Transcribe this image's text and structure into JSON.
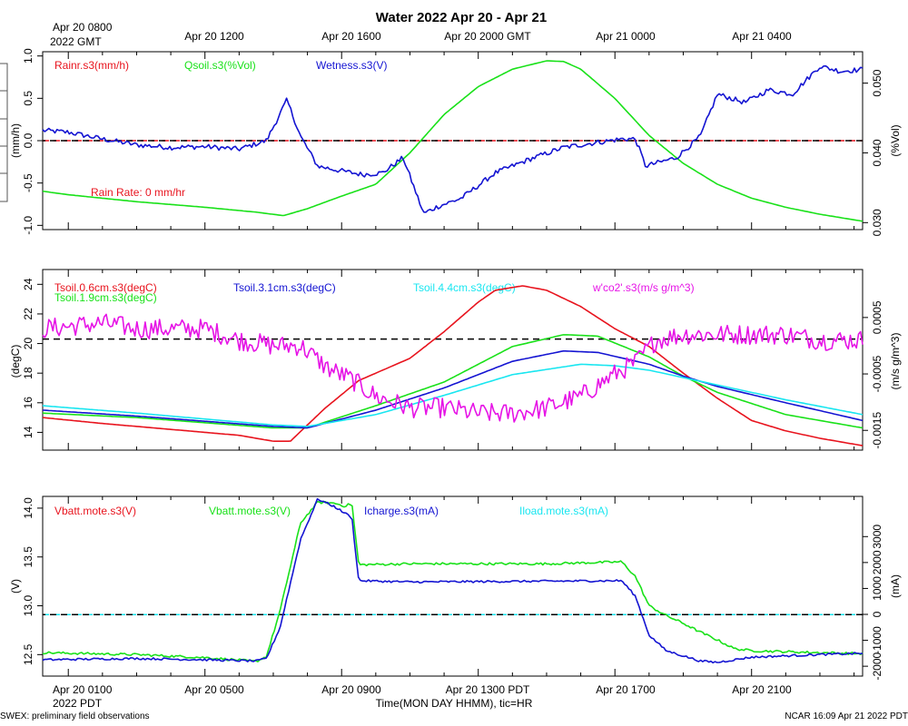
{
  "title": "Water 2022 Apr 20 - Apr 21",
  "top_axis": {
    "first_label_line1": "Apr 20 0800",
    "first_label_line2": "2022 GMT",
    "ticks": [
      {
        "t": 4,
        "label": "Apr 20 1200"
      },
      {
        "t": 8,
        "label": "Apr 20 1600"
      },
      {
        "t": 12,
        "label": "Apr 20 2000 GMT"
      },
      {
        "t": 16,
        "label": "Apr 21 0000"
      },
      {
        "t": 20,
        "label": "Apr 21 0400"
      }
    ]
  },
  "bottom_axis": {
    "first_label_line1": "Apr 20 0100",
    "first_label_line2": "2022 PDT",
    "ticks": [
      {
        "t": 4,
        "label": "Apr 20 0500"
      },
      {
        "t": 8,
        "label": "Apr 20 0900"
      },
      {
        "t": 12,
        "label": "Apr 20 1300 PDT"
      },
      {
        "t": 16,
        "label": "Apr 20 1700"
      },
      {
        "t": 20,
        "label": "Apr 20 2100"
      }
    ],
    "xlabel": "Time(MON DAY HHMM), tic=HR"
  },
  "footer": {
    "left": "SWEX: preliminary field observations",
    "right": "NCAR 16:09 Apr 21 2022 PDT"
  },
  "colors": {
    "red": "#e8141e",
    "green": "#19e119",
    "blue": "#1414d2",
    "cyan": "#19e6f0",
    "magenta": "#e614e6",
    "black": "#000000"
  },
  "chart_data": [
    {
      "type": "line",
      "panel": "rain-soil-wetness",
      "xlim": [
        -0.75,
        23.25
      ],
      "x_unit": "hours after Apr 20 0100 PDT",
      "left_axis": {
        "label": "(mm/h)",
        "ylim": [
          -1.05,
          1.05
        ],
        "ticks": [
          "1.0",
          "0.5",
          "0.0",
          "-0.5",
          "-1.0"
        ],
        "tick_values": [
          1.0,
          0.5,
          0.0,
          -0.5,
          -1.0
        ]
      },
      "right_axis": {
        "label": "(%Vol)",
        "ylim": [
          0.029,
          0.0545
        ],
        "ticks": [
          "0.050",
          "0.040",
          "0.030"
        ],
        "tick_values": [
          0.05,
          0.04,
          0.03
        ]
      },
      "reference_lines": [
        {
          "axis": "left",
          "value": 0.0,
          "style": "dashed",
          "colors": [
            "red",
            "black"
          ]
        }
      ],
      "annotations": [
        {
          "text": "Rain Rate: 0 mm/hr",
          "color": "red"
        }
      ],
      "legend": [
        {
          "text": "Rainr.s3(mm/h)",
          "color": "red"
        },
        {
          "text": "Qsoil.s3(%Vol)",
          "color": "green"
        },
        {
          "text": "Wetness.s3(V)",
          "color": "blue"
        }
      ],
      "series": [
        {
          "name": "Qsoil.s3",
          "color": "green",
          "axis": "right",
          "x": [
            -0.75,
            0,
            2,
            4,
            5.5,
            6.3,
            7,
            8,
            9,
            10,
            11,
            12,
            13,
            14,
            14.5,
            15,
            16,
            17,
            18,
            19,
            20,
            21,
            22,
            23.25
          ],
          "y": [
            0.0345,
            0.034,
            0.033,
            0.0322,
            0.0315,
            0.031,
            0.032,
            0.0338,
            0.0355,
            0.04,
            0.0455,
            0.0495,
            0.052,
            0.0532,
            0.0531,
            0.052,
            0.0478,
            0.0425,
            0.0385,
            0.0355,
            0.0335,
            0.0322,
            0.0312,
            0.0302
          ]
        },
        {
          "name": "Wetness.s3",
          "color": "blue",
          "axis": "left",
          "noise": 0.03,
          "x": [
            -0.75,
            0,
            1,
            2,
            3,
            4,
            5,
            5.8,
            6.4,
            6.8,
            7.3,
            7.9,
            8.6,
            9.2,
            9.8,
            10.4,
            10.8,
            11.5,
            12.5,
            13.5,
            14.5,
            15.5,
            16.2,
            16.6,
            16.9,
            17.8,
            18.5,
            19,
            19.8,
            20.5,
            21.2,
            22,
            22.6,
            23.25
          ],
          "y": [
            0.12,
            0.1,
            0.02,
            -0.05,
            -0.08,
            -0.07,
            -0.1,
            0.0,
            0.48,
            0.05,
            -0.3,
            -0.35,
            -0.4,
            -0.38,
            -0.2,
            -0.86,
            -0.78,
            -0.68,
            -0.38,
            -0.22,
            -0.08,
            -0.02,
            0.02,
            0.02,
            -0.3,
            -0.2,
            0.05,
            0.55,
            0.45,
            0.6,
            0.55,
            0.88,
            0.82,
            0.84
          ]
        }
      ]
    },
    {
      "type": "line",
      "panel": "soil-temperature",
      "xlim": [
        -0.75,
        23.25
      ],
      "left_axis": {
        "label": "(degC)",
        "ylim": [
          12.8,
          25.0
        ],
        "ticks": [
          "24",
          "22",
          "20",
          "18",
          "16",
          "14"
        ],
        "tick_values": [
          24,
          22,
          20,
          18,
          16,
          14
        ]
      },
      "right_axis": {
        "label": "(m/s g/m^3)",
        "ylim": [
          -0.00185,
          0.00135
        ],
        "ticks": [
          "0.0005",
          "-0.0005",
          "-0.0015"
        ],
        "tick_values": [
          0.0005,
          -0.0005,
          -0.0015
        ]
      },
      "reference_lines": [
        {
          "axis": "left",
          "value": 20.3,
          "style": "dashed",
          "colors": [
            "black"
          ]
        }
      ],
      "legend": [
        {
          "text": "Tsoil.0.6cm.s3(degC)",
          "color": "red"
        },
        {
          "text": "Tsoil.1.9cm.s3(degC)",
          "color": "green"
        },
        {
          "text": "Tsoil.3.1cm.s3(degC)",
          "color": "blue"
        },
        {
          "text": "Tsoil.4.4cm.s3(degC)",
          "color": "cyan"
        },
        {
          "text": "w'co2'.s3(m/s g/m^3)",
          "color": "magenta"
        }
      ],
      "series": [
        {
          "name": "Tsoil.0.6cm.s3",
          "color": "red",
          "axis": "left",
          "x": [
            -0.75,
            1,
            3,
            5,
            6,
            6.5,
            7.5,
            8.5,
            10,
            11,
            12,
            12.5,
            13.3,
            14,
            15,
            16,
            17,
            18,
            19,
            20,
            21,
            22,
            23.25
          ],
          "y": [
            15.0,
            14.6,
            14.2,
            13.8,
            13.4,
            13.4,
            15.6,
            17.5,
            19.0,
            20.8,
            22.8,
            23.6,
            23.9,
            23.6,
            22.5,
            21.0,
            19.8,
            18.0,
            16.3,
            14.8,
            14.1,
            13.6,
            13.1
          ]
        },
        {
          "name": "Tsoil.1.9cm.s3",
          "color": "green",
          "axis": "left",
          "x": [
            -0.75,
            2,
            6,
            7,
            9,
            11,
            13,
            14.5,
            15.5,
            17,
            18,
            19,
            21,
            23.25
          ],
          "y": [
            15.3,
            15.0,
            14.3,
            14.3,
            15.8,
            17.4,
            19.8,
            20.6,
            20.5,
            19.1,
            17.8,
            16.7,
            15.2,
            14.3
          ]
        },
        {
          "name": "Tsoil.3.1cm.s3",
          "color": "blue",
          "axis": "left",
          "x": [
            -0.75,
            2,
            6,
            7,
            9,
            11,
            13,
            14.5,
            15.5,
            17,
            18,
            19,
            21,
            23.25
          ],
          "y": [
            15.5,
            15.1,
            14.4,
            14.3,
            15.5,
            17.0,
            18.8,
            19.5,
            19.4,
            18.6,
            17.8,
            17.1,
            16.0,
            14.8
          ]
        },
        {
          "name": "Tsoil.4.4cm.s3",
          "color": "cyan",
          "axis": "left",
          "x": [
            -0.75,
            2,
            6,
            7,
            9,
            11,
            13,
            15,
            16,
            17,
            18,
            19,
            21,
            23.25
          ],
          "y": [
            15.8,
            15.3,
            14.5,
            14.4,
            15.2,
            16.5,
            17.9,
            18.6,
            18.5,
            18.2,
            17.7,
            17.2,
            16.2,
            15.2
          ]
        },
        {
          "name": "w'co2'.s3",
          "color": "magenta",
          "axis": "right",
          "noise": 0.00018,
          "x": [
            -0.75,
            1,
            2,
            3,
            4,
            5,
            6,
            6.8,
            7.6,
            8.3,
            9,
            10,
            11,
            12,
            13,
            14,
            15,
            16,
            16.6,
            17.2,
            18,
            19,
            20,
            21,
            22,
            23.25
          ],
          "y": [
            0.0003,
            0.0004,
            0.0003,
            0.0003,
            0.0003,
            0.0001,
            0.0,
            0.0,
            -0.0004,
            -0.0006,
            -0.0009,
            -0.0011,
            -0.0011,
            -0.0012,
            -0.0012,
            -0.0011,
            -0.0009,
            -0.0005,
            -0.0003,
            0.0001,
            0.0002,
            0.0002,
            0.0002,
            0.0002,
            0.0001,
            0.0001
          ]
        }
      ]
    },
    {
      "type": "line",
      "panel": "battery-current",
      "xlim": [
        -0.75,
        23.25
      ],
      "left_axis": {
        "label": "(V)",
        "ylim": [
          12.28,
          14.12
        ],
        "ticks": [
          "14.0",
          "13.5",
          "13.0",
          "12.5"
        ],
        "tick_values": [
          14.0,
          13.5,
          13.0,
          12.5
        ]
      },
      "right_axis": {
        "label": "(mA)",
        "ylim": [
          -2380,
          4550
        ],
        "ticks": [
          "3000",
          "2000",
          "1000",
          "0",
          "-1000",
          "-2000"
        ],
        "tick_values": [
          3000,
          2000,
          1000,
          0,
          -1000,
          -2000
        ]
      },
      "reference_lines": [
        {
          "axis": "left",
          "value": 12.91,
          "style": "dashed",
          "colors": [
            "cyan",
            "black"
          ]
        }
      ],
      "legend": [
        {
          "text": "Vbatt.mote.s3(V)",
          "color": "red"
        },
        {
          "text": "Vbatt.mote.s3(V)",
          "color": "green"
        },
        {
          "text": "Icharge.s3(mA)",
          "color": "blue"
        },
        {
          "text": "Iload.mote.s3(mA)",
          "color": "cyan"
        }
      ],
      "series": [
        {
          "name": "Vbatt.mote.s3",
          "color": "green",
          "axis": "left",
          "noise": 0.012,
          "x": [
            -0.75,
            2,
            4,
            5.5,
            5.8,
            6.2,
            6.8,
            7.3,
            7.8,
            8.1,
            8.3,
            8.5,
            10,
            14,
            16.2,
            16.6,
            17,
            17.5,
            18,
            18.5,
            19,
            19.5,
            20,
            21,
            22,
            23.25
          ],
          "y": [
            12.52,
            12.5,
            12.47,
            12.43,
            12.48,
            12.95,
            13.85,
            14.06,
            14.05,
            14.02,
            14.05,
            13.42,
            13.43,
            13.43,
            13.45,
            13.3,
            13.0,
            12.9,
            12.82,
            12.73,
            12.65,
            12.56,
            12.54,
            12.53,
            12.52,
            12.51
          ]
        },
        {
          "name": "Icharge.s3",
          "color": "blue",
          "axis": "right",
          "noise": 40,
          "x": [
            -0.75,
            2,
            4,
            5.5,
            5.8,
            6.2,
            6.8,
            7.3,
            7.8,
            8.1,
            8.3,
            8.5,
            10,
            14,
            16.2,
            16.6,
            17,
            17.5,
            18,
            18.5,
            19,
            20,
            21,
            22,
            23.25
          ],
          "y": [
            -1750,
            -1700,
            -1750,
            -1800,
            -1700,
            -500,
            2900,
            4450,
            4150,
            3900,
            3750,
            1300,
            1250,
            1280,
            1300,
            700,
            -800,
            -1400,
            -1600,
            -1800,
            -1850,
            -1650,
            -1600,
            -1550,
            -1500
          ]
        }
      ]
    }
  ]
}
